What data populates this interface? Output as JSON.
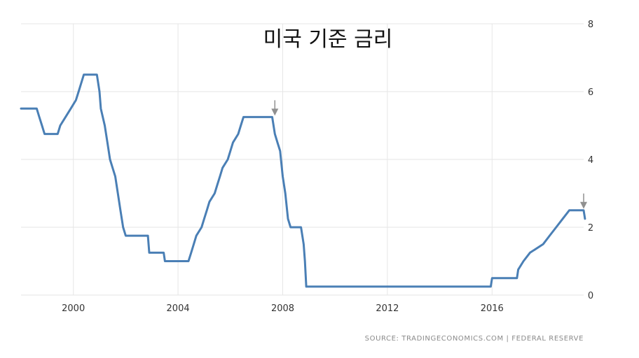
{
  "chart_data": {
    "type": "line",
    "title": "미국 기준 금리",
    "source": "SOURCE: TRADINGECONOMICS.COM | FEDERAL RESERVE",
    "xlim": [
      1998.0,
      2019.5
    ],
    "ylim": [
      0,
      8
    ],
    "x_ticks": [
      2000,
      2004,
      2008,
      2012,
      2016
    ],
    "x_tick_labels": [
      "2000",
      "2004",
      "2008",
      "2012",
      "2016"
    ],
    "y_ticks": [
      0,
      2,
      4,
      6,
      8
    ],
    "y_tick_labels": [
      "0",
      "2",
      "4",
      "6",
      "8"
    ],
    "grid": true,
    "y_axis_side": "right",
    "line_color": "#4a7fb5",
    "marker_color": "#909090",
    "markers": [
      {
        "x": 2007.7,
        "y": 5.25
      },
      {
        "x": 2019.5,
        "y": 2.5
      }
    ],
    "series": [
      {
        "color": "#4a7fb5",
        "points": [
          [
            1998.0,
            5.5
          ],
          [
            1998.6,
            5.5
          ],
          [
            1998.7,
            5.25
          ],
          [
            1998.8,
            5.0
          ],
          [
            1998.9,
            4.75
          ],
          [
            1999.4,
            4.75
          ],
          [
            1999.5,
            5.0
          ],
          [
            1999.7,
            5.25
          ],
          [
            1999.9,
            5.5
          ],
          [
            2000.1,
            5.75
          ],
          [
            2000.2,
            6.0
          ],
          [
            2000.4,
            6.5
          ],
          [
            2000.9,
            6.5
          ],
          [
            2001.0,
            6.0
          ],
          [
            2001.05,
            5.5
          ],
          [
            2001.2,
            5.0
          ],
          [
            2001.3,
            4.5
          ],
          [
            2001.4,
            4.0
          ],
          [
            2001.5,
            3.75
          ],
          [
            2001.6,
            3.5
          ],
          [
            2001.7,
            3.0
          ],
          [
            2001.8,
            2.5
          ],
          [
            2001.9,
            2.0
          ],
          [
            2002.0,
            1.75
          ],
          [
            2002.85,
            1.75
          ],
          [
            2002.9,
            1.25
          ],
          [
            2003.45,
            1.25
          ],
          [
            2003.5,
            1.0
          ],
          [
            2004.4,
            1.0
          ],
          [
            2004.5,
            1.25
          ],
          [
            2004.6,
            1.5
          ],
          [
            2004.7,
            1.75
          ],
          [
            2004.9,
            2.0
          ],
          [
            2005.0,
            2.25
          ],
          [
            2005.1,
            2.5
          ],
          [
            2005.2,
            2.75
          ],
          [
            2005.4,
            3.0
          ],
          [
            2005.5,
            3.25
          ],
          [
            2005.6,
            3.5
          ],
          [
            2005.7,
            3.75
          ],
          [
            2005.9,
            4.0
          ],
          [
            2006.0,
            4.25
          ],
          [
            2006.1,
            4.5
          ],
          [
            2006.3,
            4.75
          ],
          [
            2006.4,
            5.0
          ],
          [
            2006.5,
            5.25
          ],
          [
            2007.6,
            5.25
          ],
          [
            2007.7,
            4.75
          ],
          [
            2007.8,
            4.5
          ],
          [
            2007.9,
            4.25
          ],
          [
            2008.0,
            3.5
          ],
          [
            2008.1,
            3.0
          ],
          [
            2008.2,
            2.25
          ],
          [
            2008.3,
            2.0
          ],
          [
            2008.7,
            2.0
          ],
          [
            2008.8,
            1.5
          ],
          [
            2008.85,
            1.0
          ],
          [
            2008.9,
            0.25
          ],
          [
            2015.95,
            0.25
          ],
          [
            2016.0,
            0.5
          ],
          [
            2016.95,
            0.5
          ],
          [
            2017.0,
            0.75
          ],
          [
            2017.2,
            1.0
          ],
          [
            2017.45,
            1.25
          ],
          [
            2017.95,
            1.5
          ],
          [
            2018.2,
            1.75
          ],
          [
            2018.45,
            2.0
          ],
          [
            2018.7,
            2.25
          ],
          [
            2018.95,
            2.5
          ],
          [
            2019.5,
            2.5
          ],
          [
            2019.55,
            2.25
          ]
        ]
      }
    ]
  }
}
